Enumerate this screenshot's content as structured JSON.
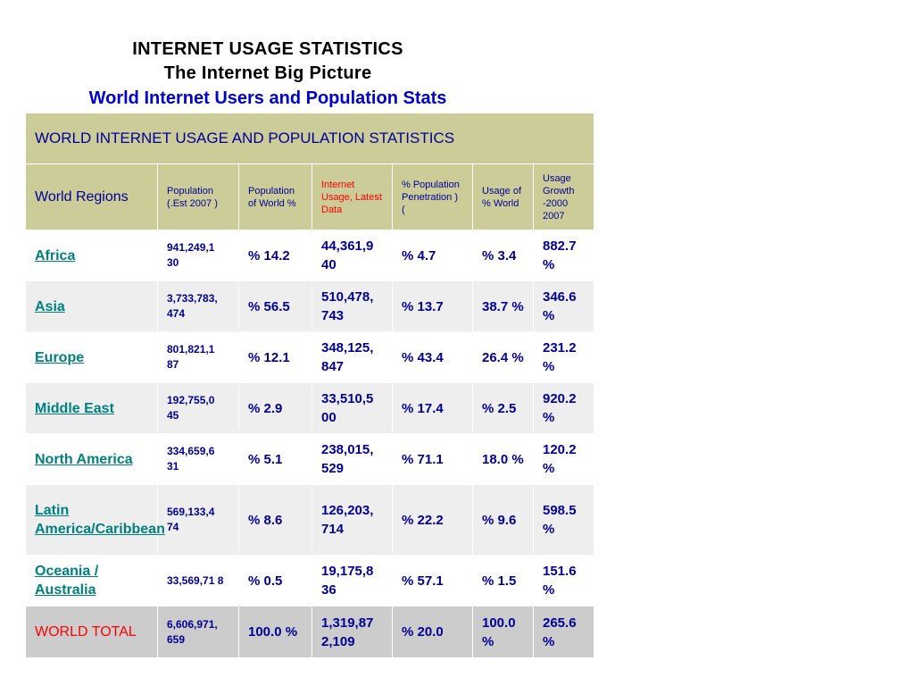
{
  "titles": {
    "line1": "INTERNET USAGE STATISTICS",
    "line2": "The Internet Big Picture",
    "line3": "World Internet Users and Population Stats"
  },
  "table": {
    "title": "WORLD INTERNET USAGE AND POPULATION STATISTICS",
    "headers": {
      "region": "World Regions",
      "population": "Population (.Est 2007 )",
      "pop_world": "Population of World %",
      "usage": "Internet Usage, Latest Data",
      "penetration": "% Population Penetration ) (",
      "usage_world": "Usage of  % World",
      "growth": "Usage Growth -2000 2007"
    },
    "rows": [
      {
        "region": "Africa",
        "population": "941,249,1 30",
        "pop_world": "% 14.2",
        "usage": "44,361,9 40",
        "penetration": "% 4.7",
        "usage_world": "% 3.4",
        "growth": "882.7 %"
      },
      {
        "region": "Asia",
        "population": "3,733,783, 474",
        "pop_world": "% 56.5",
        "usage": "510,478, 743",
        "penetration": "% 13.7",
        "usage_world": "38.7 %",
        "growth": "346.6 %"
      },
      {
        "region": "Europe",
        "population": "801,821,1 87",
        "pop_world": "% 12.1",
        "usage": "348,125, 847",
        "penetration": "% 43.4",
        "usage_world": "26.4 %",
        "growth": "231.2 %"
      },
      {
        "region": "Middle East",
        "population": "192,755,0 45",
        "pop_world": "% 2.9",
        "usage": "33,510,5 00",
        "penetration": "% 17.4",
        "usage_world": "% 2.5",
        "growth": "920.2 %"
      },
      {
        "region": "North America",
        "population": "334,659,6 31",
        "pop_world": "% 5.1",
        "usage": "238,015, 529",
        "penetration": "% 71.1",
        "usage_world": "18.0 %",
        "growth": "120.2 %"
      },
      {
        "region": "Latin America/Caribbean",
        "population": "569,133,4 74",
        "pop_world": "% 8.6",
        "usage": "126,203, 714",
        "penetration": "% 22.2",
        "usage_world": "% 9.6",
        "growth": "598.5 %"
      },
      {
        "region": "Oceania / Australia",
        "population": "33,569,71 8",
        "pop_world": "% 0.5",
        "usage": "19,175,8 36",
        "penetration": "% 57.1",
        "usage_world": "% 1.5",
        "growth": "151.6 %"
      }
    ],
    "total": {
      "region": "WORLD TOTAL",
      "population": "6,606,971, 659",
      "pop_world": "100.0 %",
      "usage": "1,319,87 2,109",
      "penetration": "% 20.0",
      "usage_world": "100.0 %",
      "growth": "265.6 %"
    }
  }
}
